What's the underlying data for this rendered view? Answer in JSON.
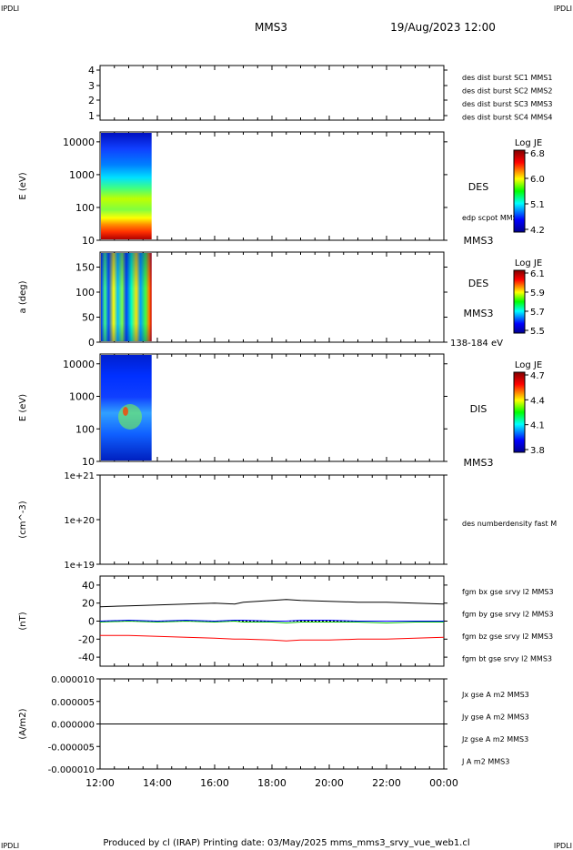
{
  "header": {
    "corner_left": "IPDLI",
    "corner_right": "IPDLI",
    "corner_bottom_left": "IPDLI",
    "corner_bottom_right": "IPDLI",
    "mission": "MMS3",
    "datetime": "19/Aug/2023 12:00"
  },
  "footer": {
    "text": "Produced by cl (IRAP)   Printing date: 03/May/2025   mms_mms3_srvy_vue_web1.cl"
  },
  "colors": {
    "blue": "#0000ff",
    "magenta": "#ff00ff",
    "red": "#ff0000",
    "green": "#00c000",
    "black": "#000000"
  },
  "x_axis": {
    "ticks": [
      "12:00",
      "14:00",
      "16:00",
      "18:00",
      "20:00",
      "22:00",
      "00:00"
    ],
    "range_hours": [
      12,
      24
    ]
  },
  "panels": {
    "burst": {
      "ticks": [
        "4",
        "3",
        "2",
        "1"
      ],
      "legend": [
        {
          "text": "des dist burst SC1 MMS1",
          "color": "#0000ff"
        },
        {
          "text": "des dist burst SC2 MMS2",
          "color": "#ff00ff"
        },
        {
          "text": "des dist burst SC3 MMS3",
          "color": "#ff0000"
        },
        {
          "text": "des dist burst SC4 MMS4",
          "color": "#00c000"
        }
      ]
    },
    "des_energy": {
      "ylabel": "E (eV)",
      "ticks": [
        "10000",
        "1000",
        "100",
        "10"
      ],
      "label_main": "DES",
      "label_sub": "edp scpot MMS3",
      "label_bottom": "MMS3",
      "colorbar_title": "Log JE",
      "colorbar_ticks": [
        "6.8",
        "6.0",
        "5.1",
        "4.2"
      ]
    },
    "des_pitch": {
      "ylabel": "a (deg)",
      "ticks": [
        "150",
        "100",
        "50",
        "0"
      ],
      "label_main": "DES",
      "label_sub": "MMS3",
      "label_bottom": "138-184 eV",
      "colorbar_title": "Log JE",
      "colorbar_ticks": [
        "6.1",
        "5.9",
        "5.7",
        "5.5"
      ]
    },
    "dis_energy": {
      "ylabel": "E (eV)",
      "ticks": [
        "10000",
        "1000",
        "100",
        "10"
      ],
      "label_main": "DIS",
      "label_bottom": "MMS3",
      "colorbar_title": "Log JE",
      "colorbar_ticks": [
        "4.7",
        "4.4",
        "4.1",
        "3.8"
      ]
    },
    "density": {
      "ylabel": "(cm^-3)",
      "ticks": [
        "1e+21",
        "1e+20",
        "1e+19"
      ],
      "legend": "des numberdensity fast M"
    },
    "fgm": {
      "ylabel": "(nT)",
      "ticks": [
        "40",
        "20",
        "0",
        "-20",
        "-40"
      ],
      "legend": [
        {
          "text": "fgm bx gse srvy l2 MMS3",
          "color": "#ff0000"
        },
        {
          "text": "fgm by gse srvy l2 MMS3",
          "color": "#00c000"
        },
        {
          "text": "fgm bz gse srvy l2 MMS3",
          "color": "#0000ff"
        },
        {
          "text": "fgm bt gse srvy l2 MMS3",
          "color": "#000000"
        }
      ]
    },
    "current": {
      "ylabel": "(A/m2)",
      "ticks": [
        "0.000010",
        "0.000005",
        "0.000000",
        "-0.000005",
        "-0.000010"
      ],
      "legend": [
        {
          "text": "Jx gse A m2 MMS3",
          "color": "#ff0000"
        },
        {
          "text": "Jy gse A m2 MMS3",
          "color": "#00c000"
        },
        {
          "text": "Jz gse A m2 MMS3",
          "color": "#0000ff"
        },
        {
          "text": "J A m2 MMS3",
          "color": "#000000"
        }
      ]
    }
  },
  "chart_data": [
    {
      "type": "line",
      "title": "",
      "ylabel": "(nT)",
      "ylim": [
        -50,
        50
      ],
      "x": [
        12,
        13,
        14,
        15,
        16,
        16.7,
        17,
        18,
        18.5,
        19,
        20,
        21,
        22,
        23,
        24
      ],
      "series": [
        {
          "name": "fgm bx gse srvy l2 MMS3",
          "values": [
            -16,
            -16,
            -17,
            -18,
            -19,
            -20,
            -20,
            -21,
            -22,
            -21,
            -21,
            -20,
            -20,
            -19,
            -18
          ]
        },
        {
          "name": "fgm by gse srvy l2 MMS3",
          "values": [
            -1,
            0,
            -1,
            0,
            -1,
            0,
            -1,
            -1,
            -2,
            -1,
            -1,
            -1,
            -2,
            -1,
            -1
          ]
        },
        {
          "name": "fgm bz gse srvy l2 MMS3",
          "values": [
            0,
            1,
            0,
            1,
            0,
            1,
            1,
            0,
            0,
            1,
            1,
            0,
            0,
            0,
            0
          ]
        },
        {
          "name": "fgm bt gse srvy l2 MMS3",
          "values": [
            16,
            17,
            18,
            19,
            20,
            19,
            21,
            23,
            24,
            23,
            22,
            21,
            21,
            20,
            19
          ]
        }
      ]
    },
    {
      "type": "line",
      "ylabel": "(A/m2)",
      "ylim": [
        -1e-05,
        1e-05
      ],
      "x": [
        12,
        24
      ],
      "series": [
        {
          "name": "J A m2 MMS3",
          "values": [
            0,
            0
          ]
        }
      ]
    },
    {
      "type": "heatmap",
      "ylabel": "E (eV)",
      "x_range": [
        12,
        13.8
      ],
      "y_range": [
        10,
        20000
      ],
      "value_range": [
        4.2,
        6.8
      ]
    },
    {
      "type": "heatmap",
      "ylabel": "a (deg)",
      "x_range": [
        12,
        13.8
      ],
      "y_range": [
        0,
        180
      ],
      "value_range": [
        5.5,
        6.1
      ]
    },
    {
      "type": "heatmap",
      "ylabel": "E (eV)",
      "x_range": [
        12,
        13.8
      ],
      "y_range": [
        10,
        20000
      ],
      "value_range": [
        3.8,
        4.7
      ]
    }
  ]
}
